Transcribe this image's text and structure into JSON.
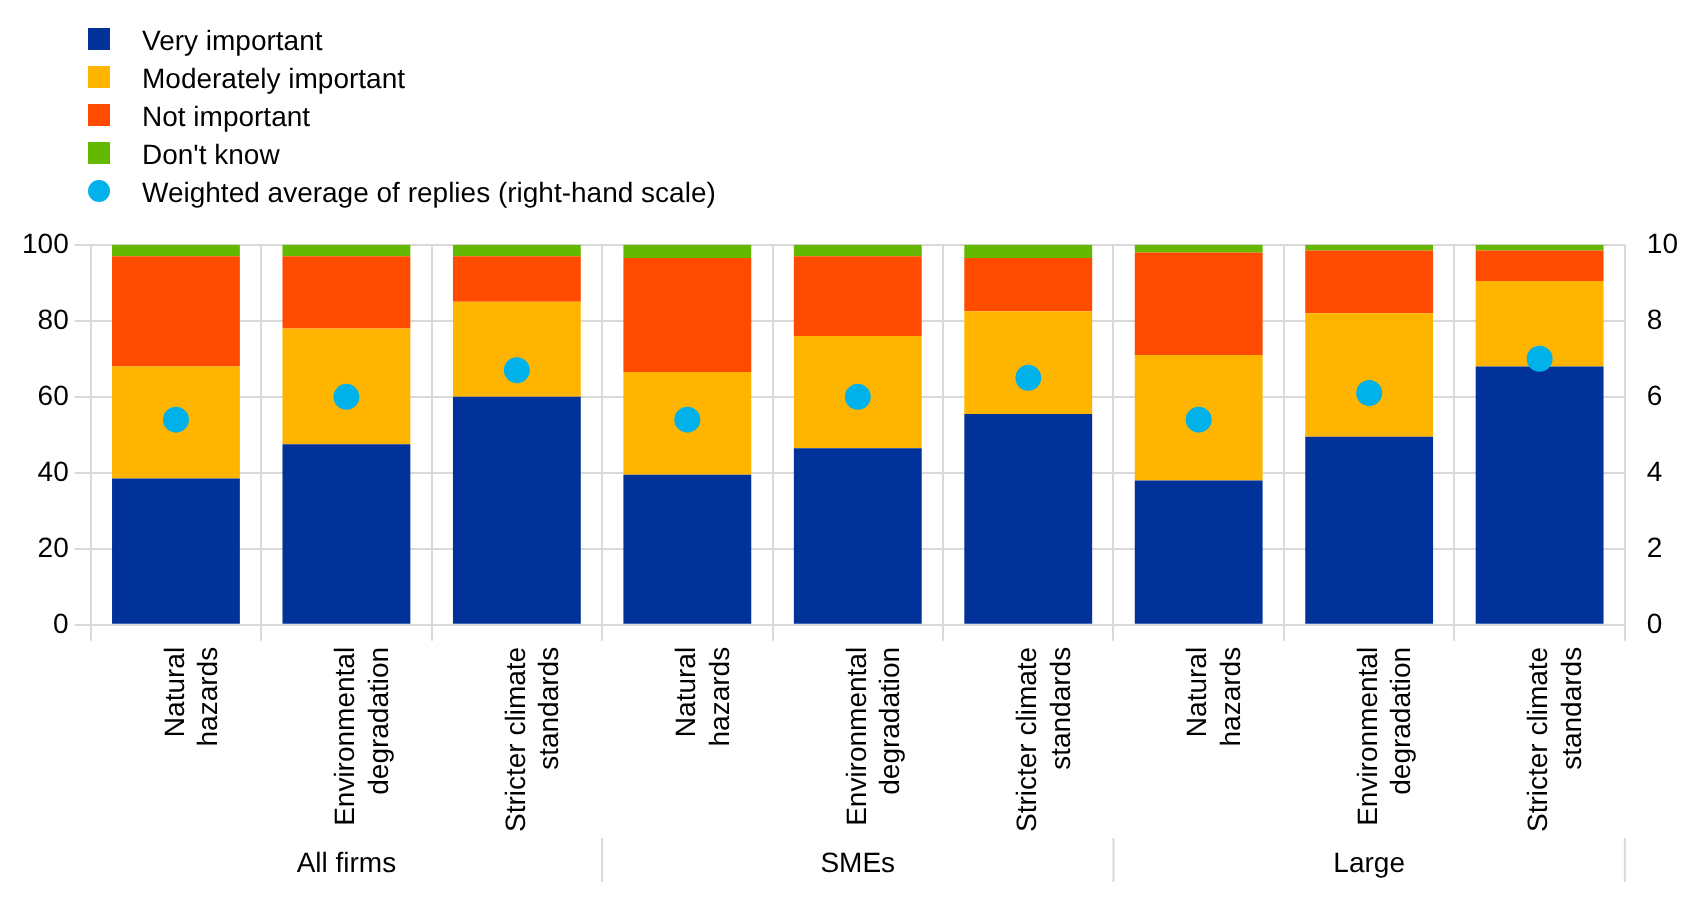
{
  "chart_data": {
    "type": "bar",
    "stacked": true,
    "categories": [
      "Natural hazards",
      "Environmental degradation",
      "Stricter climate standards",
      "Natural hazards",
      "Environmental degradation",
      "Stricter climate standards",
      "Natural hazards",
      "Environmental degradation",
      "Stricter climate standards"
    ],
    "series": [
      {
        "name": "Very important",
        "color": "#003299",
        "values": [
          38.5,
          47.5,
          60,
          39.5,
          46.5,
          55.5,
          38,
          49.5,
          68
        ]
      },
      {
        "name": "Moderately important",
        "color": "#ffb400",
        "values": [
          29.5,
          30.5,
          25,
          27,
          29.5,
          27,
          33,
          32.5,
          22.5
        ]
      },
      {
        "name": "Not important",
        "color": "#ff4b00",
        "values": [
          29,
          19,
          12,
          30,
          21,
          14,
          27,
          16.5,
          8
        ]
      },
      {
        "name": "Don't know",
        "color": "#65b800",
        "values": [
          3,
          3,
          3,
          3.5,
          3,
          3.5,
          2,
          1.5,
          1.5
        ]
      },
      {
        "name": "Weighted average of  replies (right-hand scale)",
        "type": "scatter",
        "axis": "y2",
        "color": "#00b1ea",
        "values": [
          5.4,
          6.0,
          6.7,
          5.4,
          6.0,
          6.5,
          5.4,
          6.1,
          7.0
        ]
      }
    ],
    "ylim": [
      0,
      100
    ],
    "yticks": [
      0,
      20,
      40,
      60,
      80,
      100
    ],
    "y2lim": [
      0,
      10
    ],
    "y2ticks": [
      0,
      2,
      4,
      6,
      8,
      10
    ],
    "annotations": [
      "All firms",
      "SMEs",
      "Large"
    ],
    "grid": true,
    "legend": "top left",
    "marker": "circle"
  }
}
